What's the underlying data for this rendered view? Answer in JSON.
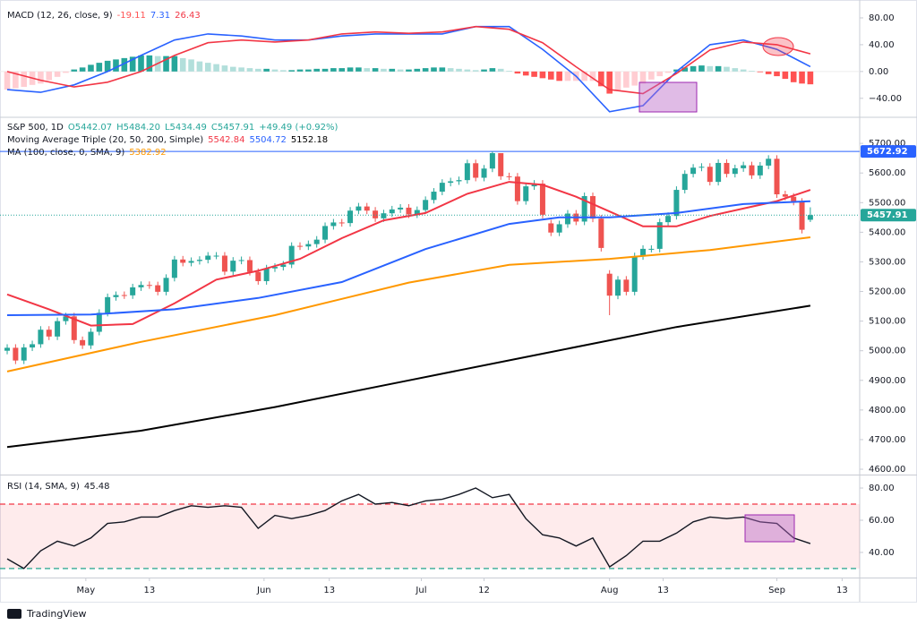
{
  "chart_data": [
    {
      "type": "macd",
      "title": "MACD (12, 26, close, 9)",
      "xlim": [
        -0.86,
        101.9
      ],
      "ylim": [
        -67,
        100
      ],
      "yticks": [
        {
          "value": 80,
          "label": "80.00"
        },
        {
          "value": 40,
          "label": "40.00"
        },
        {
          "value": 0,
          "label": "0.00"
        },
        {
          "value": -40,
          "label": "−40.00"
        }
      ],
      "histogram": {
        "values": [
          -27,
          -25,
          -23,
          -20,
          -18,
          -13,
          -8,
          -2,
          3,
          6,
          10,
          13,
          16,
          18,
          20,
          22,
          24,
          24,
          23,
          23,
          23,
          20,
          18,
          15,
          13,
          11,
          9,
          7,
          6,
          5,
          4,
          4,
          3,
          2,
          2,
          3,
          3,
          4,
          4,
          5,
          5,
          6,
          6,
          5,
          5,
          4,
          4,
          3,
          3,
          4,
          5,
          6,
          6,
          5,
          4,
          3,
          2,
          3,
          5,
          4,
          1,
          -3,
          -6,
          -8,
          -10,
          -12,
          -14,
          -14,
          -14,
          -14,
          -14,
          -22,
          -33,
          -28,
          -24,
          -21,
          -18,
          -12,
          -7,
          -2,
          3,
          6,
          8,
          9,
          8,
          8,
          7,
          5,
          3,
          1,
          -1,
          -4,
          -7,
          -11,
          -16,
          -18,
          -19.11
        ],
        "colors": {
          "up_rising": "#26a69a",
          "up_falling": "#b2dfdb",
          "down_falling": "#ff5252",
          "down_rising": "#ffcdd2"
        }
      },
      "series": [
        {
          "color": "#2962ff",
          "x": [
            0,
            4,
            8,
            12,
            16,
            20,
            24,
            28,
            32,
            36,
            40,
            44,
            48,
            52,
            56,
            60,
            64,
            68,
            72,
            76,
            80,
            84,
            88,
            92,
            96
          ],
          "values": [
            -27,
            -31,
            -20,
            0,
            24,
            47,
            56,
            53,
            47,
            47,
            53,
            56,
            56,
            56,
            67,
            67,
            33,
            -7,
            -60,
            -51,
            0,
            40,
            47,
            33,
            7.31
          ]
        },
        {
          "color": "#f23645",
          "x": [
            0,
            4,
            8,
            12,
            16,
            20,
            24,
            28,
            32,
            36,
            40,
            44,
            48,
            52,
            56,
            60,
            64,
            68,
            72,
            76,
            80,
            84,
            88,
            92,
            96
          ],
          "values": [
            0,
            -13,
            -23,
            -16,
            0,
            24,
            43,
            47,
            44,
            47,
            56,
            59,
            57,
            59,
            67,
            63,
            43,
            7,
            -27,
            -33,
            -3,
            32,
            44,
            40,
            26.43
          ]
        }
      ]
    },
    {
      "type": "candlestick",
      "title": "S&P 500, 1D",
      "ohlc_legend": [
        "O5442.07",
        "H5484.20",
        "L5434.49",
        "C5457.91"
      ],
      "change": "+49.49 (+0.92%)",
      "up_color": "#26a69a",
      "down_color": "#ef5350",
      "high_line_color": "#2962ff",
      "xlim": [
        -0.86,
        101.9
      ],
      "ylim": [
        4582,
        5785
      ],
      "yticks": [
        {
          "value": 5700,
          "label": "5700.00"
        },
        {
          "value": 5600,
          "label": "5600.00"
        },
        {
          "value": 5500,
          "label": "5500.00"
        },
        {
          "value": 5400,
          "label": "5400.00"
        },
        {
          "value": 5300,
          "label": "5300.00"
        },
        {
          "value": 5200,
          "label": "5200.00"
        },
        {
          "value": 5100,
          "label": "5100.00"
        },
        {
          "value": 5000,
          "label": "5000.00"
        },
        {
          "value": 4900,
          "label": "4900.00"
        },
        {
          "value": 4800,
          "label": "4800.00"
        },
        {
          "value": 4700,
          "label": "4700.00"
        },
        {
          "value": 4600,
          "label": "4600.00"
        }
      ],
      "open": [
        5000,
        5010,
        4967,
        5011,
        5022,
        5071,
        5048,
        5100,
        5116,
        5036,
        5018,
        5064,
        5128,
        5181,
        5188,
        5187,
        5214,
        5222,
        5221,
        5199,
        5246,
        5308,
        5297,
        5303,
        5307,
        5321,
        5321,
        5267,
        5304,
        5306,
        5266,
        5235,
        5278,
        5283,
        5291,
        5354,
        5352,
        5360,
        5375,
        5421,
        5433,
        5431,
        5473,
        5487,
        5473,
        5447,
        5464,
        5477,
        5483,
        5460,
        5475,
        5509,
        5537,
        5567,
        5572,
        5576,
        5633,
        5584,
        5615,
        5667,
        5589,
        5588,
        5505,
        5555,
        5564,
        5430,
        5399,
        5427,
        5463,
        5436,
        5522,
        5446,
        5260,
        5186,
        5240,
        5199,
        5319,
        5344,
        5344,
        5434,
        5455,
        5543,
        5597,
        5618,
        5621,
        5570,
        5634,
        5597,
        5616,
        5626,
        5592,
        5625,
        5648,
        5528,
        5520,
        5503,
        5442.07
      ],
      "high": [
        5022,
        5022,
        5023,
        5034,
        5083,
        5083,
        5112,
        5128,
        5128,
        5048,
        5076,
        5140,
        5193,
        5200,
        5200,
        5226,
        5234,
        5234,
        5233,
        5258,
        5320,
        5320,
        5315,
        5319,
        5333,
        5333,
        5333,
        5316,
        5318,
        5318,
        5278,
        5290,
        5295,
        5303,
        5366,
        5366,
        5372,
        5387,
        5433,
        5445,
        5445,
        5485,
        5499,
        5499,
        5485,
        5476,
        5489,
        5495,
        5495,
        5487,
        5521,
        5549,
        5579,
        5584,
        5588,
        5645,
        5645,
        5627,
        5672.92,
        5660,
        5601,
        5600,
        5567,
        5576,
        5576,
        5442,
        5439,
        5475,
        5475,
        5534,
        5534,
        5458,
        5272,
        5252,
        5252,
        5331,
        5356,
        5356,
        5446,
        5467,
        5555,
        5609,
        5630,
        5633,
        5633,
        5646,
        5646,
        5628,
        5638,
        5638,
        5637,
        5660,
        5660,
        5540,
        5532,
        5515,
        5484.2
      ],
      "low": [
        4988,
        4955,
        4955,
        4999,
        5010,
        5036,
        5036,
        5088,
        5024,
        5006,
        5006,
        5052,
        5116,
        5169,
        5175,
        5175,
        5202,
        5209,
        5187,
        5187,
        5234,
        5285,
        5285,
        5291,
        5295,
        5309,
        5255,
        5255,
        5292,
        5254,
        5223,
        5223,
        5266,
        5271,
        5279,
        5340,
        5340,
        5348,
        5363,
        5409,
        5419,
        5419,
        5461,
        5461,
        5435,
        5435,
        5452,
        5465,
        5448,
        5448,
        5463,
        5497,
        5525,
        5555,
        5560,
        5564,
        5572,
        5572,
        5603,
        5577,
        5576,
        5493,
        5493,
        5543,
        5447,
        5387,
        5387,
        5415,
        5424,
        5424,
        5434,
        5335,
        5120,
        5174,
        5187,
        5187,
        5307,
        5332,
        5332,
        5422,
        5443,
        5531,
        5585,
        5606,
        5558,
        5558,
        5585,
        5585,
        5604,
        5580,
        5580,
        5613,
        5516,
        5508,
        5491,
        5396,
        5434.49
      ],
      "close": [
        5010,
        4967,
        5011,
        5022,
        5071,
        5048,
        5100,
        5116,
        5036,
        5018,
        5064,
        5128,
        5181,
        5188,
        5187,
        5214,
        5222,
        5221,
        5199,
        5246,
        5308,
        5297,
        5303,
        5307,
        5321,
        5321,
        5267,
        5304,
        5306,
        5266,
        5235,
        5278,
        5283,
        5291,
        5354,
        5352,
        5360,
        5375,
        5421,
        5433,
        5431,
        5473,
        5487,
        5473,
        5447,
        5464,
        5477,
        5483,
        5460,
        5475,
        5509,
        5537,
        5567,
        5572,
        5576,
        5633,
        5584,
        5615,
        5667,
        5589,
        5588,
        5505,
        5555,
        5564,
        5459,
        5399,
        5427,
        5463,
        5436,
        5522,
        5446,
        5347,
        5186,
        5240,
        5199,
        5319,
        5344,
        5344,
        5434,
        5455,
        5543,
        5597,
        5618,
        5621,
        5570,
        5634,
        5597,
        5616,
        5626,
        5592,
        5625,
        5648,
        5528,
        5520,
        5503,
        5408.42,
        5457.91
      ],
      "indicators": [
        {
          "title": "Moving Average Triple (20, 50, 200, Simple)",
          "series": [
            {
              "color": "#f23645",
              "x": [
                0,
                5,
                10,
                15,
                20,
                25,
                30,
                35,
                40,
                45,
                50,
                55,
                60,
                64,
                68,
                72,
                76,
                80,
                84,
                88,
                92,
                96
              ],
              "values": [
                5190,
                5140,
                5085,
                5090,
                5160,
                5240,
                5270,
                5310,
                5380,
                5440,
                5465,
                5530,
                5570,
                5560,
                5520,
                5470,
                5420,
                5420,
                5455,
                5480,
                5505,
                5542.84
              ]
            },
            {
              "color": "#2962ff",
              "x": [
                0,
                10,
                20,
                30,
                40,
                50,
                60,
                66,
                72,
                80,
                88,
                96
              ],
              "values": [
                5120,
                5122,
                5140,
                5178,
                5232,
                5343,
                5428,
                5450,
                5450,
                5465,
                5495,
                5504.72
              ]
            },
            {
              "color": "#000000",
              "x": [
                0,
                16,
                32,
                48,
                64,
                80,
                96
              ],
              "values": [
                4675,
                4730,
                4810,
                4900,
                4990,
                5080,
                5152.18
              ]
            }
          ]
        },
        {
          "title": "MA (100, close, 0, SMA, 9)",
          "series": [
            {
              "color": "#ff9800",
              "x": [
                0,
                16,
                32,
                48,
                60,
                72,
                84,
                96
              ],
              "values": [
                4930,
                5030,
                5120,
                5230,
                5290,
                5310,
                5340,
                5382.92
              ]
            }
          ]
        }
      ]
    },
    {
      "type": "rsi",
      "title": "RSI (14, SMA, 9)",
      "color": "#131722",
      "xlim": [
        -0.86,
        101.9
      ],
      "ylim": [
        24.4,
        87.8
      ],
      "yticks": [
        {
          "value": 80,
          "label": "80.00"
        },
        {
          "value": 60,
          "label": "60.00"
        },
        {
          "value": 40,
          "label": "40.00"
        }
      ],
      "levels": [
        {
          "value": 70,
          "color": "#f23645"
        },
        {
          "value": 30,
          "color": "#089981"
        }
      ],
      "band_color": "#f23645",
      "x": [
        0,
        2,
        4,
        6,
        8,
        10,
        12,
        14,
        16,
        18,
        20,
        22,
        24,
        26,
        28,
        30,
        32,
        34,
        36,
        38,
        40,
        42,
        44,
        46,
        48,
        50,
        52,
        54,
        56,
        58,
        60,
        62,
        64,
        66,
        68,
        70,
        72,
        74,
        76,
        78,
        80,
        82,
        84,
        86,
        88,
        90,
        92,
        94,
        96
      ],
      "values": [
        36,
        30,
        41,
        47,
        44,
        49,
        58,
        59,
        62,
        62,
        66,
        69,
        68,
        69,
        68,
        55,
        63,
        61,
        63,
        66,
        72,
        76,
        70,
        71,
        69,
        72,
        73,
        76,
        80,
        74,
        76,
        61,
        51,
        49,
        44,
        49,
        31,
        38,
        47,
        47,
        52,
        59,
        62,
        61,
        62,
        59,
        58,
        49,
        45.48
      ],
      "xticks": [
        {
          "value": 9.4,
          "label": "May"
        },
        {
          "value": 17,
          "label": "13"
        },
        {
          "value": 30.7,
          "label": "Jun"
        },
        {
          "value": 38.5,
          "label": "13"
        },
        {
          "value": 49.5,
          "label": "Jul"
        },
        {
          "value": 57,
          "label": "12"
        },
        {
          "value": 72,
          "label": "Aug"
        },
        {
          "value": 78.4,
          "label": "13"
        },
        {
          "value": 92,
          "label": "Sep"
        },
        {
          "value": 99.8,
          "label": "13"
        }
      ]
    }
  ],
  "brand": "TradingView"
}
